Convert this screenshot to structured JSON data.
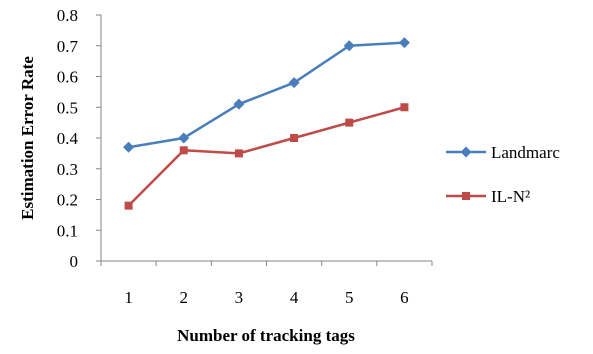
{
  "chart_data": {
    "type": "line",
    "xlabel": "Number of tracking tags",
    "ylabel": "Estimation Error Rate",
    "categories": [
      "1",
      "2",
      "3",
      "4",
      "5",
      "6"
    ],
    "ylim": [
      0,
      0.8
    ],
    "yticks": [
      "0",
      "0.1",
      "0.2",
      "0.3",
      "0.4",
      "0.5",
      "0.6",
      "0.7",
      "0.8"
    ],
    "grid": false,
    "legend_position": "right",
    "series": [
      {
        "name": "Landmarc",
        "values": [
          0.37,
          0.4,
          0.51,
          0.58,
          0.7,
          0.71
        ],
        "color": "#4a7ebb",
        "marker": "diamond"
      },
      {
        "name": "IL-N²",
        "values": [
          0.18,
          0.36,
          0.35,
          0.4,
          0.45,
          0.5
        ],
        "color": "#be4b48",
        "marker": "square"
      }
    ]
  }
}
